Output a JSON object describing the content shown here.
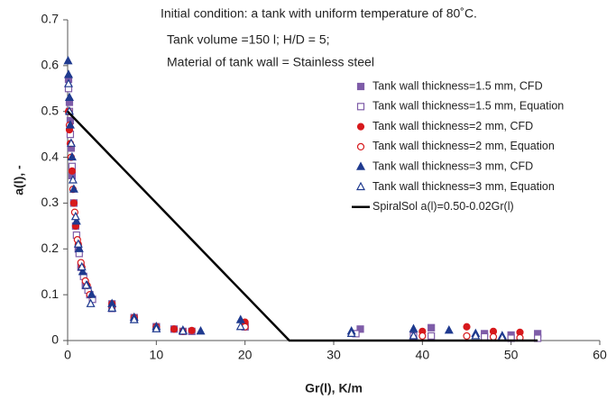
{
  "chart_data": {
    "type": "scatter",
    "annotations": [
      "Initial condition: a tank with uniform temperature of 80˚C.",
      "Tank volume =150 l; H/D = 5;",
      "Material of tank wall = Stainless steel"
    ],
    "xlabel": "Gr(l), K/m",
    "ylabel": "a(l), -",
    "xlim": [
      0,
      60
    ],
    "xticks": [
      0,
      10,
      20,
      30,
      40,
      50,
      60
    ],
    "ylim": [
      0,
      0.7
    ],
    "yticks": [
      0,
      0.1,
      0.2,
      0.3,
      0.4,
      0.5,
      0.6,
      0.7
    ],
    "series": [
      {
        "name": "Tank wall thickness=1.5 mm, CFD",
        "color": "#7e5ca8",
        "marker": "square",
        "filled": true,
        "x": [
          0.1,
          0.2,
          0.3,
          0.4,
          0.5,
          0.7,
          0.9,
          1.2,
          1.5,
          2,
          2.5,
          5,
          7.5,
          10,
          12,
          14,
          20,
          33,
          41,
          47,
          50,
          53
        ],
        "values": [
          0.57,
          0.52,
          0.48,
          0.42,
          0.36,
          0.3,
          0.25,
          0.2,
          0.16,
          0.12,
          0.1,
          0.08,
          0.05,
          0.03,
          0.025,
          0.02,
          0.03,
          0.025,
          0.028,
          0.015,
          0.012,
          0.015
        ]
      },
      {
        "name": "Tank wall thickness=1.5 mm, Equation",
        "color": "#7e5ca8",
        "marker": "square",
        "filled": false,
        "x": [
          0.1,
          0.2,
          0.3,
          0.5,
          0.7,
          1,
          1.3,
          1.8,
          2.3,
          2.8,
          5,
          7.5,
          10,
          13,
          20,
          32.5,
          39,
          41,
          47,
          50,
          53
        ],
        "values": [
          0.55,
          0.5,
          0.45,
          0.38,
          0.3,
          0.23,
          0.19,
          0.14,
          0.11,
          0.09,
          0.07,
          0.05,
          0.03,
          0.02,
          0.03,
          0.015,
          0.01,
          0.01,
          0.008,
          0.005,
          0.005
        ]
      },
      {
        "name": "Tank wall thickness=2 mm, CFD",
        "color": "#d7191c",
        "marker": "circle",
        "filled": true,
        "x": [
          0.1,
          0.2,
          0.3,
          0.5,
          0.7,
          0.9,
          1.2,
          1.6,
          2.2,
          5,
          7.5,
          10,
          12,
          14,
          20,
          40,
          45,
          48,
          51
        ],
        "values": [
          0.5,
          0.46,
          0.43,
          0.37,
          0.3,
          0.25,
          0.21,
          0.16,
          0.12,
          0.08,
          0.05,
          0.03,
          0.025,
          0.022,
          0.04,
          0.02,
          0.03,
          0.02,
          0.018
        ]
      },
      {
        "name": "Tank wall thickness=2 mm, Equation",
        "color": "#d7191c",
        "marker": "circle",
        "filled": false,
        "x": [
          0.2,
          0.4,
          0.6,
          0.8,
          1.1,
          1.5,
          2,
          2.5,
          5,
          7.5,
          10,
          13,
          20,
          40,
          45,
          48,
          51
        ],
        "values": [
          0.47,
          0.4,
          0.33,
          0.28,
          0.22,
          0.17,
          0.13,
          0.1,
          0.075,
          0.05,
          0.03,
          0.02,
          0.03,
          0.01,
          0.01,
          0.008,
          0.006
        ]
      },
      {
        "name": "Tank wall thickness=3 mm, CFD",
        "color": "#1f3a8f",
        "marker": "triangle",
        "filled": true,
        "x": [
          0.05,
          0.1,
          0.2,
          0.3,
          0.5,
          0.7,
          1,
          1.3,
          1.7,
          2.2,
          2.7,
          5,
          7.5,
          10,
          13,
          15,
          19.5,
          32,
          39,
          43,
          46,
          49
        ],
        "values": [
          0.61,
          0.58,
          0.53,
          0.47,
          0.4,
          0.33,
          0.26,
          0.2,
          0.15,
          0.12,
          0.1,
          0.08,
          0.05,
          0.03,
          0.022,
          0.02,
          0.045,
          0.02,
          0.025,
          0.022,
          0.015,
          0.01
        ]
      },
      {
        "name": "Tank wall thickness=3 mm, Equation",
        "color": "#1f3a8f",
        "marker": "triangle",
        "filled": false,
        "x": [
          0.1,
          0.2,
          0.4,
          0.6,
          0.9,
          1.2,
          1.6,
          2.1,
          2.6,
          5,
          7.5,
          10,
          13,
          19.5,
          32,
          39,
          46,
          49
        ],
        "values": [
          0.56,
          0.5,
          0.43,
          0.35,
          0.27,
          0.21,
          0.16,
          0.12,
          0.08,
          0.07,
          0.045,
          0.025,
          0.02,
          0.03,
          0.015,
          0.01,
          0.01,
          0.006
        ]
      },
      {
        "name": "SpiralSol  a(l)=0.50-0.02Gr(l)",
        "color": "#000000",
        "marker": "line",
        "filled": true,
        "x": [
          0,
          25,
          53
        ],
        "values": [
          0.5,
          0,
          0
        ]
      }
    ]
  }
}
